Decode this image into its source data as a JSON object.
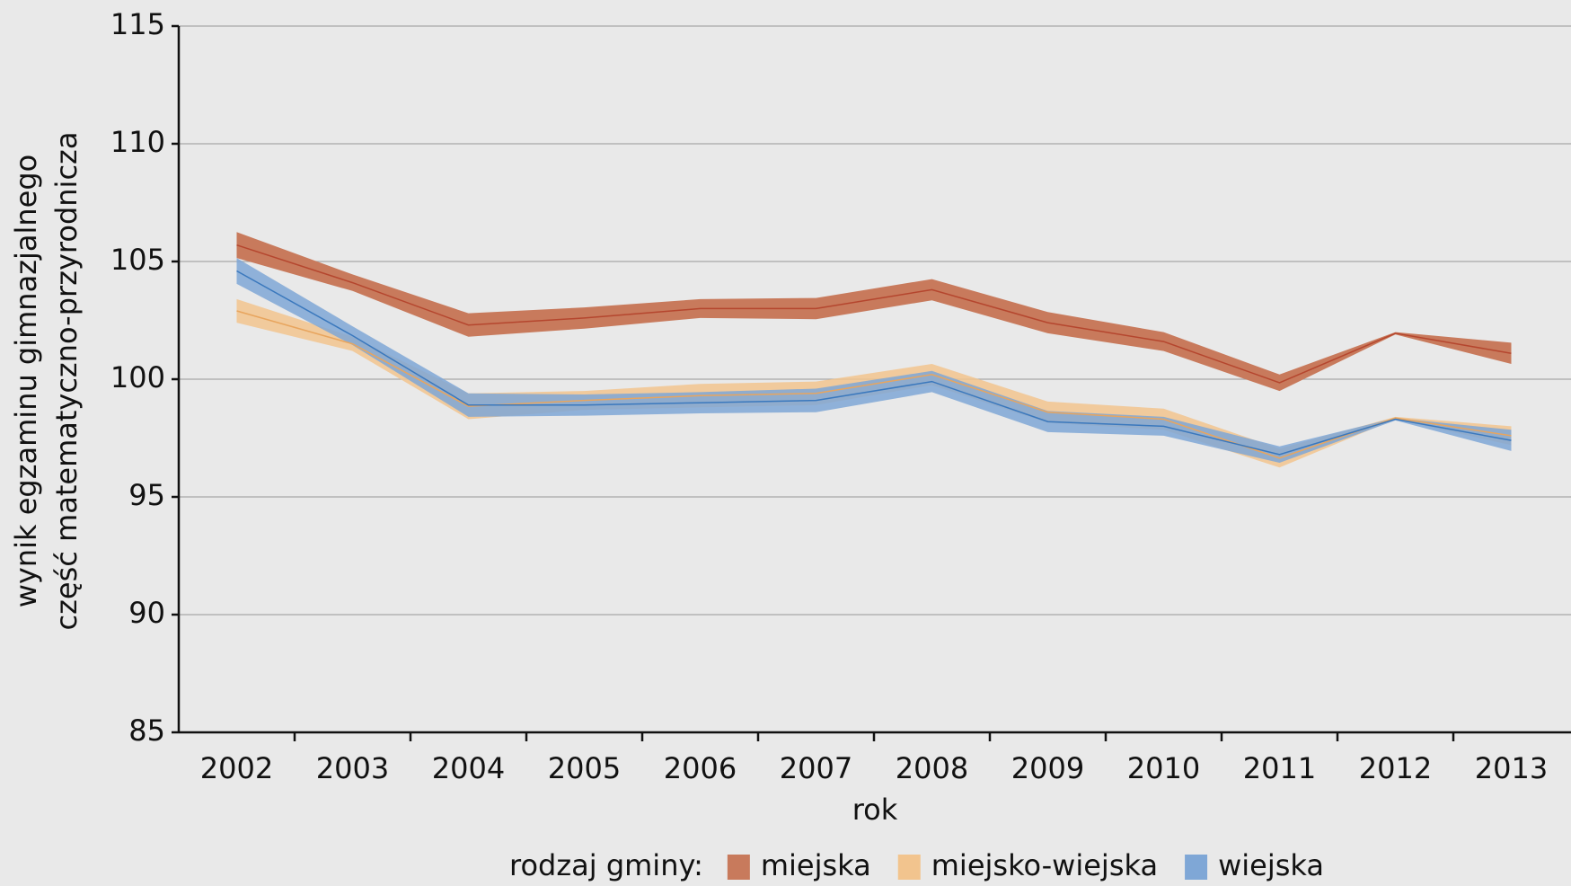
{
  "chart_data": {
    "type": "line_band",
    "ylabel": [
      "wynik egzaminu gimnazjalnego",
      "część matematyczno-przyrodnicza"
    ],
    "xlabel": "rok",
    "legend_title": "rodzaj gminy:",
    "categories": [
      "2002",
      "2003",
      "2004",
      "2005",
      "2006",
      "2007",
      "2008",
      "2009",
      "2010",
      "2011",
      "2012",
      "2013"
    ],
    "series": [
      {
        "name": "miejska",
        "color": "#b5462e",
        "band_color": "#c87a5c",
        "values": [
          105.7,
          104.1,
          102.3,
          102.6,
          103.0,
          103.0,
          103.8,
          102.4,
          101.6,
          99.85,
          101.95,
          101.1
        ],
        "lower": [
          105.15,
          103.75,
          101.8,
          102.15,
          102.6,
          102.55,
          103.35,
          101.95,
          101.2,
          99.5,
          101.9,
          100.65
        ],
        "upper": [
          106.25,
          104.45,
          102.8,
          103.05,
          103.4,
          103.45,
          104.25,
          102.85,
          102.0,
          100.2,
          102.0,
          101.55
        ]
      },
      {
        "name": "miejsko-wiejska",
        "color": "#e8a55e",
        "band_color": "#f2c48e",
        "values": [
          102.9,
          101.5,
          98.85,
          99.1,
          99.3,
          99.4,
          100.2,
          98.6,
          98.3,
          96.65,
          98.35,
          97.6
        ],
        "lower": [
          102.4,
          101.2,
          98.3,
          98.7,
          98.8,
          98.9,
          99.75,
          98.15,
          97.85,
          96.25,
          98.3,
          97.2
        ],
        "upper": [
          103.4,
          101.8,
          99.4,
          99.5,
          99.8,
          99.9,
          100.65,
          99.05,
          98.75,
          97.05,
          98.4,
          98.0
        ]
      },
      {
        "name": "wiejska",
        "color": "#3a78bd",
        "band_color": "#7fa7d6",
        "values": [
          104.6,
          101.85,
          98.9,
          98.9,
          99.0,
          99.1,
          99.9,
          98.2,
          98.0,
          96.8,
          98.3,
          97.4
        ],
        "lower": [
          104.05,
          101.45,
          98.4,
          98.45,
          98.55,
          98.6,
          99.45,
          97.75,
          97.6,
          96.45,
          98.25,
          96.95
        ],
        "upper": [
          105.15,
          102.25,
          99.4,
          99.35,
          99.45,
          99.6,
          100.35,
          98.65,
          98.4,
          97.15,
          98.35,
          97.85
        ]
      }
    ],
    "ylim": [
      85,
      115
    ],
    "yticks": [
      85,
      90,
      95,
      100,
      105,
      110,
      115
    ],
    "grid": true
  }
}
